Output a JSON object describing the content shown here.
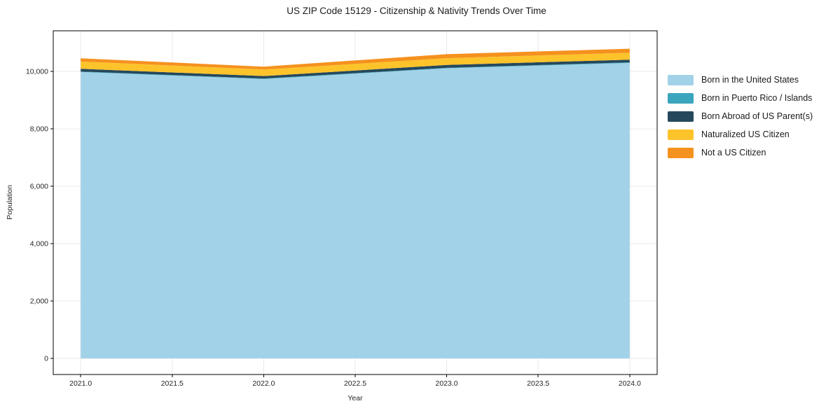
{
  "chart_data": {
    "type": "area",
    "stacked": true,
    "title": "US ZIP Code 15129 - Citizenship & Nativity Trends Over Time",
    "xlabel": "Year",
    "ylabel": "Population",
    "x": [
      2021,
      2022,
      2023,
      2024
    ],
    "series": [
      {
        "name": "Born in the United States",
        "color": "#a2d2e8",
        "values": [
          9985,
          9740,
          10115,
          10300
        ]
      },
      {
        "name": "Born in Puerto Rico / Islands",
        "color": "#3aa5bc",
        "values": [
          15,
          15,
          15,
          20
        ]
      },
      {
        "name": "Born Abroad of US Parent(s)",
        "color": "#26485c",
        "values": [
          95,
          90,
          100,
          95
        ]
      },
      {
        "name": "Naturalized US Citizen",
        "color": "#fdc32b",
        "values": [
          255,
          225,
          235,
          240
        ]
      },
      {
        "name": "Not a US Citizen",
        "color": "#f5911e",
        "values": [
          110,
          100,
          140,
          140
        ]
      }
    ],
    "xlim": [
      2020.85,
      2024.15
    ],
    "ylim": [
      -560,
      11420
    ],
    "xticks": [
      2021.0,
      2021.5,
      2022.0,
      2022.5,
      2023.0,
      2023.5,
      2024.0
    ],
    "yticks": [
      0,
      2000,
      4000,
      6000,
      8000,
      10000
    ],
    "xtick_decimals": 1,
    "grid": true,
    "grid_color": "#e9e9e9",
    "spine_color": "#000000",
    "legend_position": "right-top"
  }
}
